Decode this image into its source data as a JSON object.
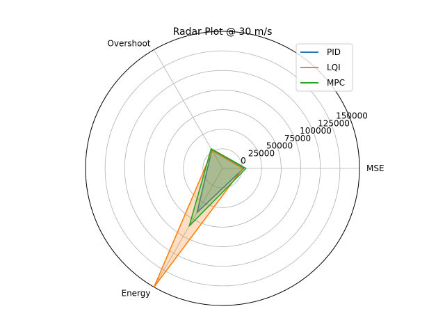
{
  "chart_data": {
    "type": "radar",
    "title": "Radar Plot @ 30 m/s",
    "categories": [
      "MSE",
      "Overshoot",
      "Energy"
    ],
    "r_ticks": [
      0,
      25000,
      50000,
      75000,
      100000,
      125000,
      150000
    ],
    "rlim": [
      -25000,
      150000
    ],
    "grid": true,
    "legend_position": "top-right",
    "series": [
      {
        "name": "PID",
        "values": [
          2000,
          2000,
          40000
        ],
        "color": "#1f77b4"
      },
      {
        "name": "LQI",
        "values": [
          1000,
          1000,
          150000
        ],
        "color": "#ff7f0e"
      },
      {
        "name": "MPC",
        "values": [
          5000,
          4000,
          60000
        ],
        "color": "#2ca02c"
      }
    ]
  }
}
